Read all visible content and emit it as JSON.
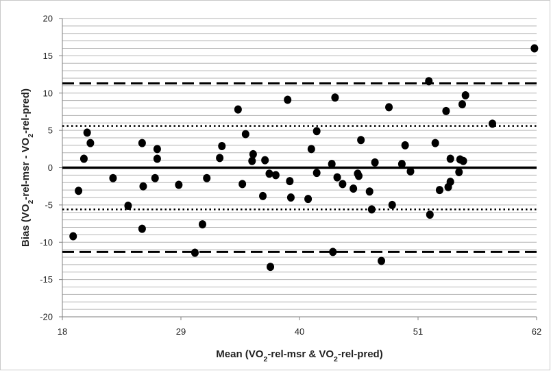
{
  "chart_data": {
    "type": "scatter",
    "title": "",
    "xlabel": "Mean (VO2-rel-msr & VO2-rel-pred)",
    "ylabel": "Bias (VO2-rel-msr - VO2-rel-pred)",
    "xlabel_parts": [
      {
        "text": "Mean (VO",
        "sub": false
      },
      {
        "text": "2",
        "sub": true
      },
      {
        "text": "-rel-msr & VO",
        "sub": false
      },
      {
        "text": "2",
        "sub": true
      },
      {
        "text": "-rel-pred)",
        "sub": false
      }
    ],
    "ylabel_parts": [
      {
        "text": "Bias (VO",
        "sub": false
      },
      {
        "text": "2",
        "sub": true
      },
      {
        "text": "-rel-msr - VO",
        "sub": false
      },
      {
        "text": "2",
        "sub": true
      },
      {
        "text": "-rel-pred)",
        "sub": false
      }
    ],
    "xlim": [
      18,
      62
    ],
    "ylim": [
      -20,
      20
    ],
    "xticks": [
      18,
      29,
      40,
      51,
      62
    ],
    "yticks": [
      -20,
      -15,
      -10,
      -5,
      0,
      5,
      10,
      15,
      20
    ],
    "minor_grid_step": 1,
    "grid": true,
    "legend": "none",
    "reference_lines": [
      {
        "y": 11.3,
        "style": "dashed"
      },
      {
        "y": 5.6,
        "style": "dotted"
      },
      {
        "y": 0,
        "style": "solid"
      },
      {
        "y": -5.6,
        "style": "dotted"
      },
      {
        "y": -11.3,
        "style": "dashed"
      }
    ],
    "points": [
      {
        "x": 19.0,
        "y": -9.2
      },
      {
        "x": 19.5,
        "y": -3.1
      },
      {
        "x": 20.0,
        "y": 1.2
      },
      {
        "x": 20.3,
        "y": 4.7
      },
      {
        "x": 20.6,
        "y": 3.3
      },
      {
        "x": 22.7,
        "y": -1.4
      },
      {
        "x": 24.1,
        "y": -5.1
      },
      {
        "x": 25.4,
        "y": 3.3
      },
      {
        "x": 25.5,
        "y": -2.5
      },
      {
        "x": 25.4,
        "y": -8.2
      },
      {
        "x": 26.6,
        "y": -1.4
      },
      {
        "x": 26.8,
        "y": 2.5
      },
      {
        "x": 26.8,
        "y": 1.2
      },
      {
        "x": 28.8,
        "y": -2.3
      },
      {
        "x": 30.3,
        "y": -11.4
      },
      {
        "x": 31.0,
        "y": -7.6
      },
      {
        "x": 31.4,
        "y": -1.4
      },
      {
        "x": 32.6,
        "y": 1.3
      },
      {
        "x": 32.8,
        "y": 2.9
      },
      {
        "x": 34.3,
        "y": 7.8
      },
      {
        "x": 34.7,
        "y": -2.2
      },
      {
        "x": 35.0,
        "y": 4.5
      },
      {
        "x": 35.6,
        "y": 0.9
      },
      {
        "x": 35.7,
        "y": 1.8
      },
      {
        "x": 36.6,
        "y": -3.8
      },
      {
        "x": 36.8,
        "y": 1.0
      },
      {
        "x": 37.2,
        "y": -0.8
      },
      {
        "x": 37.3,
        "y": -13.3
      },
      {
        "x": 37.8,
        "y": -1.0
      },
      {
        "x": 38.9,
        "y": 9.1
      },
      {
        "x": 39.1,
        "y": -1.8
      },
      {
        "x": 39.2,
        "y": -4.0
      },
      {
        "x": 40.8,
        "y": -4.2
      },
      {
        "x": 41.1,
        "y": 2.5
      },
      {
        "x": 41.6,
        "y": 4.9
      },
      {
        "x": 41.6,
        "y": -0.7
      },
      {
        "x": 43.0,
        "y": 0.5
      },
      {
        "x": 43.1,
        "y": -11.3
      },
      {
        "x": 43.3,
        "y": 9.4
      },
      {
        "x": 43.5,
        "y": -1.3
      },
      {
        "x": 44.0,
        "y": -2.2
      },
      {
        "x": 45.0,
        "y": -2.8
      },
      {
        "x": 45.4,
        "y": -0.8
      },
      {
        "x": 45.5,
        "y": -1.1
      },
      {
        "x": 45.7,
        "y": 3.7
      },
      {
        "x": 46.5,
        "y": -3.2
      },
      {
        "x": 46.7,
        "y": -5.6
      },
      {
        "x": 47.0,
        "y": 0.7
      },
      {
        "x": 47.6,
        "y": -12.5
      },
      {
        "x": 48.3,
        "y": 8.1
      },
      {
        "x": 48.6,
        "y": -5.0
      },
      {
        "x": 49.5,
        "y": 0.5
      },
      {
        "x": 49.8,
        "y": 3.0
      },
      {
        "x": 50.3,
        "y": -0.5
      },
      {
        "x": 52.0,
        "y": 11.6
      },
      {
        "x": 52.1,
        "y": -6.3
      },
      {
        "x": 52.6,
        "y": 3.3
      },
      {
        "x": 53.0,
        "y": -3.0
      },
      {
        "x": 53.6,
        "y": 7.6
      },
      {
        "x": 53.8,
        "y": -2.6
      },
      {
        "x": 54.0,
        "y": 1.2
      },
      {
        "x": 54.0,
        "y": -1.9
      },
      {
        "x": 54.8,
        "y": -0.6
      },
      {
        "x": 54.9,
        "y": 1.1
      },
      {
        "x": 55.1,
        "y": 8.5
      },
      {
        "x": 55.2,
        "y": 0.9
      },
      {
        "x": 55.4,
        "y": 9.7
      },
      {
        "x": 57.9,
        "y": 5.9
      },
      {
        "x": 61.8,
        "y": 16.0
      }
    ]
  },
  "colors": {
    "grid": "#b3b3b3",
    "axis": "#7f7f7f",
    "marker": "#000000",
    "line": "#000000",
    "text": "#222222"
  }
}
